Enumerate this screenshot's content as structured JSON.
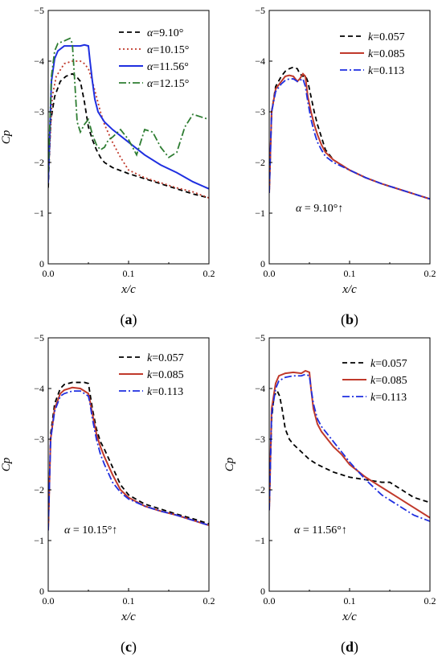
{
  "colors": {
    "black": "#000000",
    "dark_red": "#C0392B",
    "dotted_red": "#C0392B",
    "blue": "#1F2FE0",
    "green": "#2E7D32"
  },
  "chart_data": [
    {
      "type": "line",
      "panel_label": "a",
      "xlabel": "x/c",
      "ylabel": "Cp",
      "xlim": [
        0,
        0.2
      ],
      "ylim": [
        0,
        -5
      ],
      "xticks": [
        "0.0",
        "0.1",
        "0.2"
      ],
      "yticks": [
        "0",
        "-1",
        "-2",
        "-3",
        "-4",
        "-5"
      ],
      "legend_position": "top-right",
      "legend_variable": "α",
      "annotation": "",
      "series": [
        {
          "name": "=9.10°",
          "color": "#000000",
          "style": "dashed",
          "x": [
            0,
            0.003,
            0.008,
            0.015,
            0.022,
            0.03,
            0.035,
            0.04,
            0.045,
            0.05,
            0.055,
            0.06,
            0.065,
            0.07,
            0.08,
            0.1,
            0.12,
            0.14,
            0.16,
            0.18,
            0.2
          ],
          "y": [
            -1.5,
            -2.8,
            -3.3,
            -3.6,
            -3.7,
            -3.75,
            -3.7,
            -3.6,
            -3.2,
            -2.7,
            -2.45,
            -2.25,
            -2.1,
            -2.0,
            -1.9,
            -1.78,
            -1.68,
            -1.58,
            -1.48,
            -1.38,
            -1.3
          ]
        },
        {
          "name": "=10.15°",
          "color": "#C0392B",
          "style": "dotted",
          "x": [
            0,
            0.005,
            0.01,
            0.02,
            0.03,
            0.04,
            0.045,
            0.05,
            0.055,
            0.06,
            0.065,
            0.07,
            0.08,
            0.09,
            0.1,
            0.12,
            0.14,
            0.16,
            0.18,
            0.2
          ],
          "y": [
            -1.7,
            -3.3,
            -3.7,
            -3.95,
            -4.0,
            -4.0,
            -3.95,
            -3.85,
            -3.6,
            -3.3,
            -3.0,
            -2.75,
            -2.4,
            -2.1,
            -1.85,
            -1.7,
            -1.6,
            -1.5,
            -1.42,
            -1.3
          ]
        },
        {
          "name": "=11.56°",
          "color": "#1F2FE0",
          "style": "solid",
          "x": [
            0,
            0.004,
            0.008,
            0.012,
            0.02,
            0.03,
            0.04,
            0.045,
            0.05,
            0.052,
            0.055,
            0.058,
            0.062,
            0.07,
            0.08,
            0.1,
            0.12,
            0.14,
            0.16,
            0.18,
            0.2
          ],
          "y": [
            -1.6,
            -3.6,
            -4.05,
            -4.2,
            -4.3,
            -4.3,
            -4.3,
            -4.32,
            -4.3,
            -4.0,
            -3.6,
            -3.25,
            -3.0,
            -2.8,
            -2.65,
            -2.4,
            -2.15,
            -1.95,
            -1.8,
            -1.62,
            -1.48
          ]
        },
        {
          "name": "=12.15°",
          "color": "#2E7D32",
          "style": "dashdot",
          "x": [
            0,
            0.004,
            0.008,
            0.012,
            0.02,
            0.027,
            0.03,
            0.033,
            0.036,
            0.04,
            0.045,
            0.05,
            0.055,
            0.06,
            0.065,
            0.07,
            0.075,
            0.08,
            0.09,
            0.1,
            0.11,
            0.12,
            0.13,
            0.14,
            0.15,
            0.16,
            0.17,
            0.18,
            0.19,
            0.2
          ],
          "y": [
            -1.8,
            -3.7,
            -4.2,
            -4.35,
            -4.4,
            -4.45,
            -4.35,
            -3.6,
            -2.8,
            -2.6,
            -2.75,
            -2.85,
            -2.55,
            -2.35,
            -2.25,
            -2.3,
            -2.45,
            -2.5,
            -2.65,
            -2.45,
            -2.15,
            -2.65,
            -2.6,
            -2.3,
            -2.1,
            -2.2,
            -2.7,
            -2.95,
            -2.9,
            -2.85
          ]
        }
      ]
    },
    {
      "type": "line",
      "panel_label": "b",
      "xlabel": "x/c",
      "ylabel": "",
      "xlim": [
        0,
        0.2
      ],
      "ylim": [
        0,
        -5
      ],
      "xticks": [
        "0.0",
        "0.1",
        "0.2"
      ],
      "yticks": [
        "0",
        "-1",
        "-2",
        "-3",
        "-4",
        "-5"
      ],
      "legend_position": "top-right",
      "legend_variable": "k",
      "annotation": "α = 9.10°↑",
      "series": [
        {
          "name": "=0.057",
          "color": "#000000",
          "style": "dashed",
          "x": [
            0,
            0.003,
            0.008,
            0.015,
            0.02,
            0.025,
            0.03,
            0.035,
            0.038,
            0.042,
            0.045,
            0.048,
            0.052,
            0.056,
            0.06,
            0.065,
            0.07,
            0.08,
            0.1,
            0.12,
            0.14,
            0.16,
            0.18,
            0.2
          ],
          "y": [
            -1.4,
            -3.0,
            -3.5,
            -3.7,
            -3.8,
            -3.85,
            -3.88,
            -3.85,
            -3.75,
            -3.7,
            -3.72,
            -3.6,
            -3.3,
            -3.0,
            -2.75,
            -2.5,
            -2.25,
            -2.05,
            -1.85,
            -1.7,
            -1.58,
            -1.48,
            -1.38,
            -1.28
          ]
        },
        {
          "name": "=0.085",
          "color": "#C0392B",
          "style": "solid",
          "x": [
            0,
            0.003,
            0.008,
            0.015,
            0.02,
            0.025,
            0.03,
            0.035,
            0.038,
            0.042,
            0.045,
            0.048,
            0.052,
            0.056,
            0.06,
            0.065,
            0.07,
            0.08,
            0.1,
            0.12,
            0.14,
            0.16,
            0.18,
            0.2
          ],
          "y": [
            -1.4,
            -3.0,
            -3.45,
            -3.6,
            -3.7,
            -3.72,
            -3.7,
            -3.6,
            -3.65,
            -3.75,
            -3.7,
            -3.3,
            -3.0,
            -2.75,
            -2.55,
            -2.35,
            -2.2,
            -2.05,
            -1.85,
            -1.7,
            -1.58,
            -1.48,
            -1.38,
            -1.28
          ]
        },
        {
          "name": "=0.113",
          "color": "#1F2FE0",
          "style": "dashdot",
          "x": [
            0,
            0.003,
            0.008,
            0.015,
            0.02,
            0.025,
            0.03,
            0.035,
            0.038,
            0.042,
            0.045,
            0.048,
            0.052,
            0.056,
            0.06,
            0.065,
            0.07,
            0.08,
            0.1,
            0.12,
            0.14,
            0.16,
            0.18,
            0.2
          ],
          "y": [
            -1.4,
            -3.0,
            -3.4,
            -3.55,
            -3.62,
            -3.65,
            -3.65,
            -3.6,
            -3.62,
            -3.65,
            -3.5,
            -3.2,
            -2.85,
            -2.6,
            -2.4,
            -2.25,
            -2.12,
            -2.0,
            -1.85,
            -1.7,
            -1.58,
            -1.48,
            -1.38,
            -1.28
          ]
        }
      ]
    },
    {
      "type": "line",
      "panel_label": "c",
      "xlabel": "x/c",
      "ylabel": "Cp",
      "xlim": [
        0,
        0.2
      ],
      "ylim": [
        0,
        -5
      ],
      "xticks": [
        "0.0",
        "0.1",
        "0.2"
      ],
      "yticks": [
        "0",
        "-1",
        "-2",
        "-3",
        "-4",
        "-5"
      ],
      "legend_position": "top-right",
      "legend_variable": "k",
      "annotation": "α = 10.15°↑",
      "series": [
        {
          "name": "=0.057",
          "color": "#000000",
          "style": "dashed",
          "x": [
            0,
            0.003,
            0.008,
            0.015,
            0.02,
            0.03,
            0.04,
            0.045,
            0.05,
            0.052,
            0.055,
            0.06,
            0.065,
            0.07,
            0.08,
            0.09,
            0.1,
            0.12,
            0.14,
            0.16,
            0.18,
            0.2
          ],
          "y": [
            -1.2,
            -3.1,
            -3.7,
            -4.0,
            -4.08,
            -4.12,
            -4.12,
            -4.12,
            -4.1,
            -3.9,
            -3.6,
            -3.2,
            -2.95,
            -2.8,
            -2.45,
            -2.1,
            -1.9,
            -1.72,
            -1.62,
            -1.52,
            -1.43,
            -1.33
          ]
        },
        {
          "name": "=0.085",
          "color": "#C0392B",
          "style": "solid",
          "x": [
            0,
            0.003,
            0.008,
            0.015,
            0.02,
            0.03,
            0.04,
            0.045,
            0.05,
            0.052,
            0.055,
            0.06,
            0.065,
            0.07,
            0.08,
            0.09,
            0.1,
            0.12,
            0.14,
            0.16,
            0.18,
            0.2
          ],
          "y": [
            -1.2,
            -3.0,
            -3.6,
            -3.9,
            -3.97,
            -4.02,
            -4.0,
            -3.95,
            -3.9,
            -3.75,
            -3.5,
            -3.1,
            -2.85,
            -2.65,
            -2.3,
            -2.0,
            -1.85,
            -1.68,
            -1.58,
            -1.5,
            -1.4,
            -1.3
          ]
        },
        {
          "name": "=0.113",
          "color": "#1F2FE0",
          "style": "dashdot",
          "x": [
            0,
            0.003,
            0.008,
            0.015,
            0.02,
            0.03,
            0.04,
            0.045,
            0.05,
            0.052,
            0.055,
            0.06,
            0.065,
            0.07,
            0.08,
            0.09,
            0.1,
            0.12,
            0.14,
            0.16,
            0.18,
            0.2
          ],
          "y": [
            -1.2,
            -3.0,
            -3.55,
            -3.85,
            -3.9,
            -3.95,
            -3.95,
            -3.9,
            -3.85,
            -3.7,
            -3.4,
            -3.0,
            -2.7,
            -2.5,
            -2.15,
            -1.95,
            -1.82,
            -1.68,
            -1.58,
            -1.5,
            -1.4,
            -1.3
          ]
        }
      ]
    },
    {
      "type": "line",
      "panel_label": "d",
      "xlabel": "x/c",
      "ylabel": "Cp",
      "xlim": [
        0,
        0.2
      ],
      "ylim": [
        0,
        -5
      ],
      "xticks": [
        "0.0",
        "0.1",
        "0.2"
      ],
      "yticks": [
        "0",
        "-1",
        "-2",
        "-3",
        "-4",
        "-5"
      ],
      "legend_position": "top-right",
      "legend_variable": "k",
      "annotation": "α = 11.56°↑",
      "series": [
        {
          "name": "=0.057",
          "color": "#000000",
          "style": "dashed",
          "x": [
            0,
            0.003,
            0.006,
            0.01,
            0.013,
            0.016,
            0.02,
            0.025,
            0.03,
            0.04,
            0.05,
            0.06,
            0.08,
            0.1,
            0.12,
            0.14,
            0.15,
            0.16,
            0.18,
            0.2
          ],
          "y": [
            -1.6,
            -3.4,
            -3.85,
            -3.95,
            -3.85,
            -3.6,
            -3.2,
            -3.0,
            -2.9,
            -2.75,
            -2.6,
            -2.5,
            -2.35,
            -2.25,
            -2.2,
            -2.15,
            -2.15,
            -2.05,
            -1.85,
            -1.75
          ]
        },
        {
          "name": "=0.085",
          "color": "#C0392B",
          "style": "solid",
          "x": [
            0,
            0.003,
            0.008,
            0.012,
            0.02,
            0.03,
            0.04,
            0.045,
            0.05,
            0.052,
            0.055,
            0.06,
            0.065,
            0.07,
            0.08,
            0.09,
            0.1,
            0.12,
            0.14,
            0.16,
            0.18,
            0.2
          ],
          "y": [
            -1.6,
            -3.6,
            -4.1,
            -4.25,
            -4.3,
            -4.32,
            -4.3,
            -4.35,
            -4.32,
            -4.0,
            -3.6,
            -3.3,
            -3.15,
            -3.05,
            -2.85,
            -2.7,
            -2.5,
            -2.25,
            -2.05,
            -1.85,
            -1.65,
            -1.45
          ]
        },
        {
          "name": "=0.113",
          "color": "#1F2FE0",
          "style": "dashdot",
          "x": [
            0,
            0.003,
            0.008,
            0.012,
            0.02,
            0.03,
            0.04,
            0.045,
            0.05,
            0.052,
            0.055,
            0.06,
            0.065,
            0.07,
            0.08,
            0.09,
            0.1,
            0.12,
            0.14,
            0.16,
            0.18,
            0.2
          ],
          "y": [
            -1.6,
            -3.5,
            -4.0,
            -4.15,
            -4.22,
            -4.25,
            -4.25,
            -4.28,
            -4.25,
            -4.0,
            -3.7,
            -3.4,
            -3.25,
            -3.15,
            -2.95,
            -2.75,
            -2.55,
            -2.2,
            -1.9,
            -1.7,
            -1.5,
            -1.38
          ]
        }
      ]
    }
  ]
}
